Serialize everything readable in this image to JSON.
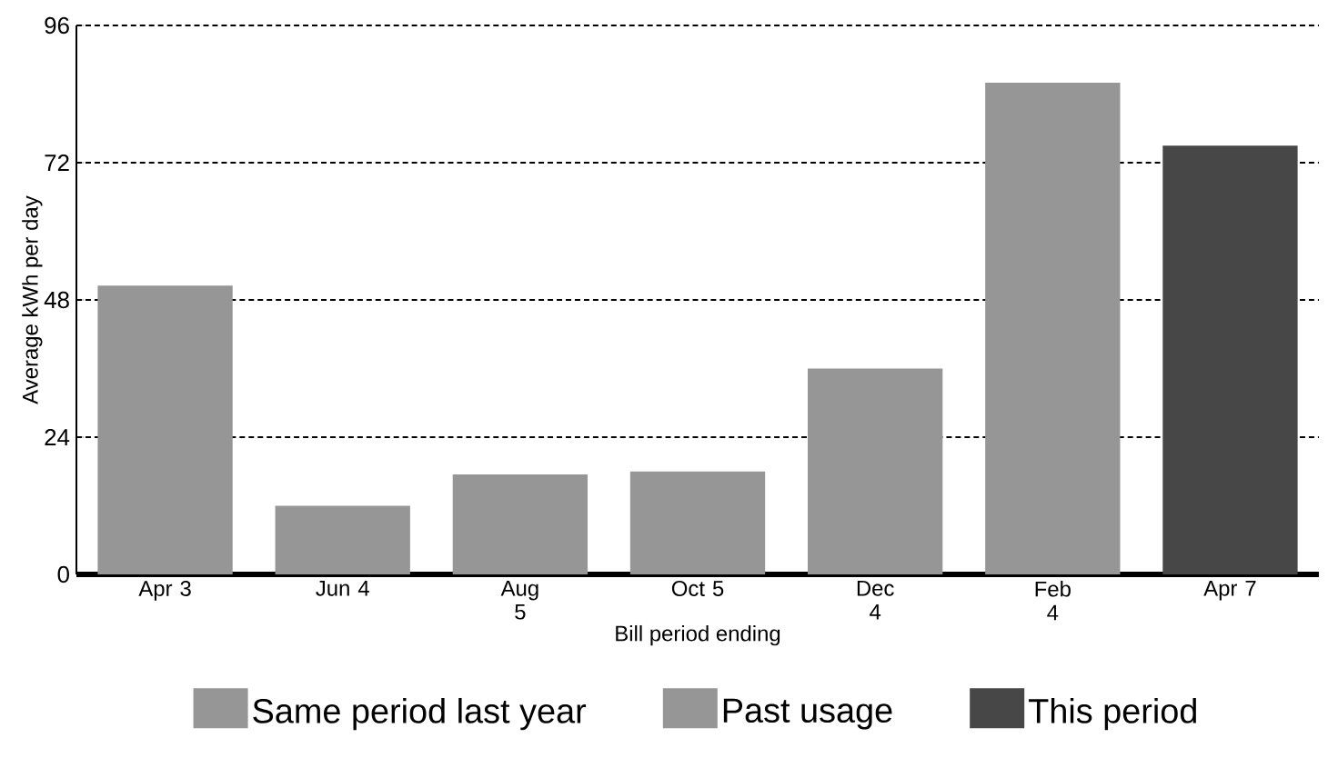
{
  "chart_data": {
    "type": "bar",
    "xlabel": "Bill period ending",
    "ylabel": "Average kWh per day",
    "categories": [
      "Apr 3",
      "Jun 4",
      "Aug 5",
      "Oct 5",
      "Dec 4",
      "Feb 4",
      "Apr 7"
    ],
    "series": [
      {
        "name": "Same period last year",
        "color": "#969696",
        "values": [
          50.5,
          null,
          null,
          null,
          null,
          null,
          null
        ]
      },
      {
        "name": "Past usage",
        "color": "#969696",
        "values": [
          null,
          12,
          17.5,
          18,
          36,
          86,
          null
        ]
      },
      {
        "name": "This period",
        "color": "#474747",
        "values": [
          null,
          null,
          null,
          null,
          null,
          null,
          75
        ]
      }
    ],
    "ylim": [
      0,
      96
    ],
    "yticks": [
      0,
      24,
      48,
      72,
      96
    ],
    "grid": "y",
    "legend": "bottom"
  }
}
